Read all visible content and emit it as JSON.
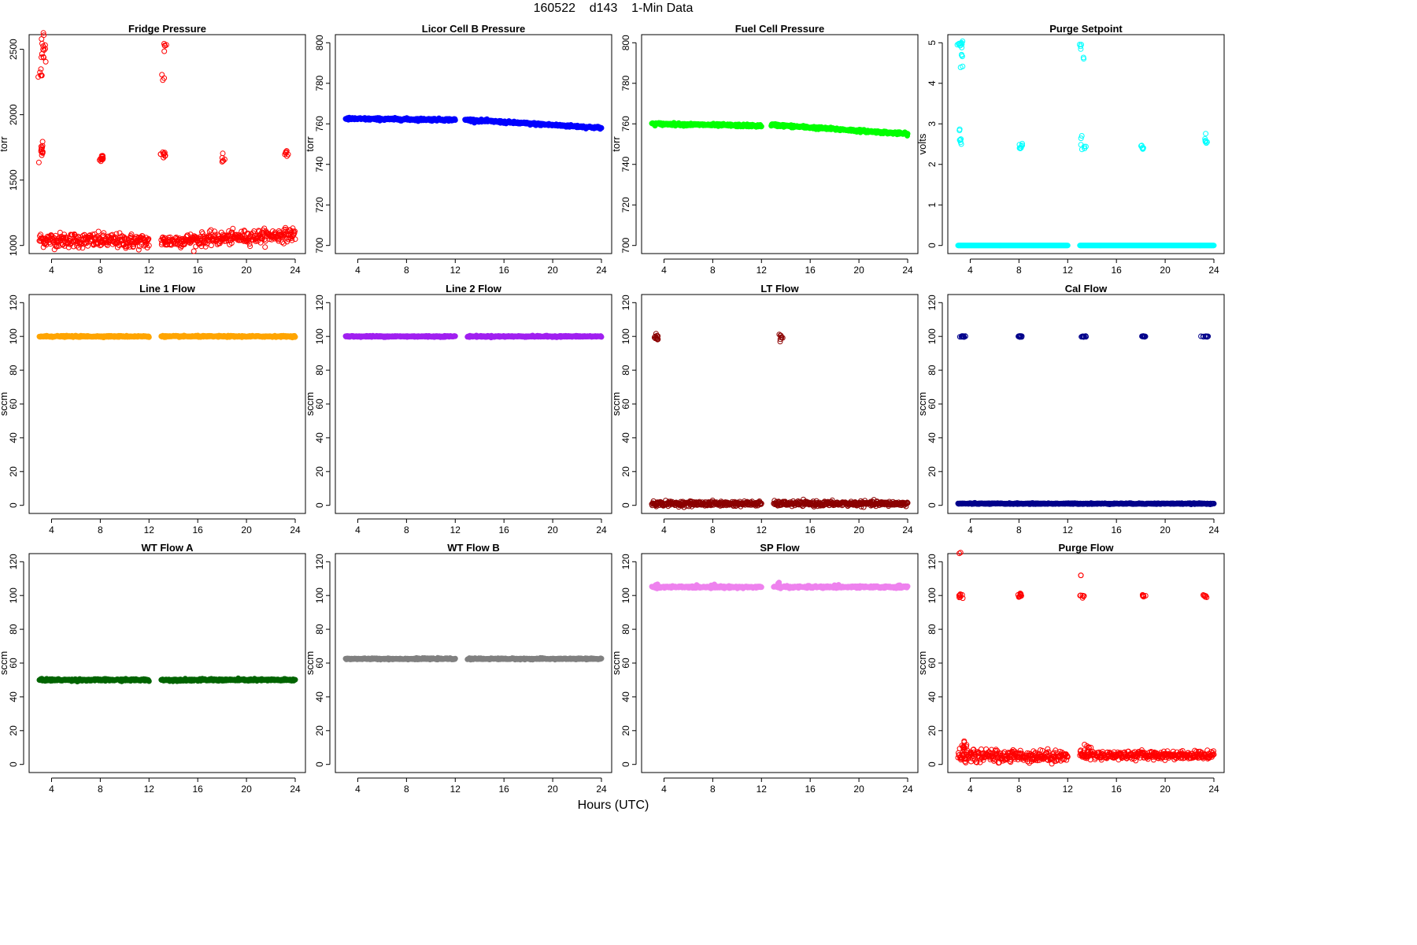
{
  "title": "160522    d143    1-Min Data",
  "x_axis_title": "Hours (UTC)",
  "chart_data": [
    {
      "type": "scatter",
      "title": "Fridge Pressure",
      "ylabel": "torr",
      "xlim": [
        3,
        24
      ],
      "ylim": [
        1000,
        2550
      ],
      "xticks": [
        4,
        8,
        12,
        16,
        20,
        24
      ],
      "yticks": [
        1000,
        1500,
        2000,
        2500
      ],
      "color": "#ff0000",
      "marker": "circle-open",
      "series": [
        {
          "segments": [
            {
              "x": [
                3,
                12
              ],
              "y": [
                1045,
                1030
              ],
              "noise": 28
            },
            {
              "x": [
                13,
                24
              ],
              "y": [
                1030,
                1085
              ],
              "noise": 25
            }
          ],
          "clusters": [
            {
              "x": 3.1,
              "y": 2300,
              "n": 6,
              "sx": 0.12,
              "sy": 40
            },
            {
              "x": 3.3,
              "y": 2520,
              "n": 14,
              "sx": 0.1,
              "sy": 45
            },
            {
              "x": 3.2,
              "y": 1690,
              "n": 10,
              "sx": 0.12,
              "sy": 30
            },
            {
              "x": 3.3,
              "y": 1780,
              "n": 3,
              "sx": 0.1,
              "sy": 20
            },
            {
              "x": 8.1,
              "y": 1665,
              "n": 12,
              "sx": 0.1,
              "sy": 20
            },
            {
              "x": 13.2,
              "y": 2280,
              "n": 3,
              "sx": 0.1,
              "sy": 30
            },
            {
              "x": 13.3,
              "y": 2530,
              "n": 5,
              "sx": 0.1,
              "sy": 40
            },
            {
              "x": 13.2,
              "y": 1700,
              "n": 10,
              "sx": 0.12,
              "sy": 25
            },
            {
              "x": 18.1,
              "y": 1655,
              "n": 6,
              "sx": 0.1,
              "sy": 15
            },
            {
              "x": 23.3,
              "y": 1705,
              "n": 7,
              "sx": 0.12,
              "sy": 15
            }
          ]
        }
      ]
    },
    {
      "type": "scatter",
      "title": "Licor Cell B Pressure",
      "ylabel": "torr",
      "xlim": [
        3,
        24
      ],
      "ylim": [
        700,
        800
      ],
      "xticks": [
        4,
        8,
        12,
        16,
        20,
        24
      ],
      "yticks": [
        700,
        720,
        740,
        760,
        780,
        800
      ],
      "color": "#0000ff",
      "marker": "circle-filled",
      "series": [
        {
          "segments": [
            {
              "x": [
                3,
                12
              ],
              "y": [
                762.5,
                762
              ],
              "noise": 0.3
            },
            {
              "x": [
                12.8,
                24
              ],
              "y": [
                762,
                758
              ],
              "noise": 0.3
            }
          ],
          "clusters": []
        }
      ]
    },
    {
      "type": "scatter",
      "title": "Fuel Cell Pressure",
      "ylabel": "torr",
      "xlim": [
        3,
        24
      ],
      "ylim": [
        700,
        800
      ],
      "xticks": [
        4,
        8,
        12,
        16,
        20,
        24
      ],
      "yticks": [
        700,
        720,
        740,
        760,
        780,
        800
      ],
      "color": "#00ff00",
      "marker": "circle-filled",
      "series": [
        {
          "segments": [
            {
              "x": [
                3,
                12
              ],
              "y": [
                760,
                759
              ],
              "noise": 0.3
            },
            {
              "x": [
                12.8,
                24
              ],
              "y": [
                759.5,
                755
              ],
              "noise": 0.3
            }
          ],
          "clusters": []
        }
      ]
    },
    {
      "type": "scatter",
      "title": "Purge Setpoint",
      "ylabel": "volts",
      "xlim": [
        3,
        24
      ],
      "ylim": [
        0,
        5
      ],
      "xticks": [
        4,
        8,
        12,
        16,
        20,
        24
      ],
      "yticks": [
        0,
        1,
        2,
        3,
        4,
        5
      ],
      "color": "#00ffff",
      "marker": "circle-open",
      "series": [
        {
          "segments": [
            {
              "x": [
                3,
                12
              ],
              "y": [
                0,
                0
              ],
              "noise": 0
            },
            {
              "x": [
                13,
                24
              ],
              "y": [
                0,
                0
              ],
              "noise": 0
            }
          ],
          "clusters": [
            {
              "x": 3.2,
              "y": 4.95,
              "n": 10,
              "sx": 0.1,
              "sy": 0.05
            },
            {
              "x": 3.3,
              "y": 4.6,
              "n": 6,
              "sx": 0.08,
              "sy": 0.15
            },
            {
              "x": 3.2,
              "y": 2.5,
              "n": 6,
              "sx": 0.08,
              "sy": 0.12
            },
            {
              "x": 3.1,
              "y": 2.85,
              "n": 2,
              "sx": 0.05,
              "sy": 0.1
            },
            {
              "x": 8.1,
              "y": 2.42,
              "n": 8,
              "sx": 0.1,
              "sy": 0.05
            },
            {
              "x": 13.1,
              "y": 4.95,
              "n": 4,
              "sx": 0.08,
              "sy": 0.05
            },
            {
              "x": 13.3,
              "y": 4.6,
              "n": 2,
              "sx": 0.05,
              "sy": 0.05
            },
            {
              "x": 13.2,
              "y": 2.5,
              "n": 7,
              "sx": 0.1,
              "sy": 0.15
            },
            {
              "x": 18.1,
              "y": 2.42,
              "n": 6,
              "sx": 0.1,
              "sy": 0.05
            },
            {
              "x": 23.3,
              "y": 2.5,
              "n": 7,
              "sx": 0.1,
              "sy": 0.1
            }
          ]
        }
      ]
    },
    {
      "type": "scatter",
      "title": "Line 1 Flow",
      "ylabel": "sccm",
      "xlim": [
        3,
        24
      ],
      "ylim": [
        0,
        120
      ],
      "xticks": [
        4,
        8,
        12,
        16,
        20,
        24
      ],
      "yticks": [
        0,
        20,
        40,
        60,
        80,
        100,
        120
      ],
      "color": "#ffa500",
      "marker": "circle-filled",
      "series": [
        {
          "segments": [
            {
              "x": [
                3,
                12
              ],
              "y": [
                100,
                100
              ],
              "noise": 0.2
            },
            {
              "x": [
                13,
                24
              ],
              "y": [
                100,
                100
              ],
              "noise": 0.2
            }
          ],
          "clusters": []
        }
      ]
    },
    {
      "type": "scatter",
      "title": "Line 2 Flow",
      "ylabel": "sccm",
      "xlim": [
        3,
        24
      ],
      "ylim": [
        0,
        120
      ],
      "xticks": [
        4,
        8,
        12,
        16,
        20,
        24
      ],
      "yticks": [
        0,
        20,
        40,
        60,
        80,
        100,
        120
      ],
      "color": "#a020f0",
      "marker": "circle-filled",
      "series": [
        {
          "segments": [
            {
              "x": [
                3,
                12
              ],
              "y": [
                100,
                100
              ],
              "noise": 0.2
            },
            {
              "x": [
                13,
                24
              ],
              "y": [
                100,
                100
              ],
              "noise": 0.2
            }
          ],
          "clusters": []
        }
      ]
    },
    {
      "type": "scatter",
      "title": "LT Flow",
      "ylabel": "sccm",
      "xlim": [
        3,
        24
      ],
      "ylim": [
        0,
        120
      ],
      "xticks": [
        4,
        8,
        12,
        16,
        20,
        24
      ],
      "yticks": [
        0,
        20,
        40,
        60,
        80,
        100,
        120
      ],
      "color": "#8b0000",
      "marker": "circle-open",
      "series": [
        {
          "segments": [
            {
              "x": [
                3,
                12
              ],
              "y": [
                1,
                1
              ],
              "noise": 0.7
            },
            {
              "x": [
                13,
                24
              ],
              "y": [
                1,
                1
              ],
              "noise": 0.7
            }
          ],
          "clusters": [
            {
              "x": 3.4,
              "y": 99.5,
              "n": 12,
              "sx": 0.08,
              "sy": 1
            },
            {
              "x": 13.6,
              "y": 99.5,
              "n": 8,
              "sx": 0.08,
              "sy": 1.2
            }
          ]
        }
      ]
    },
    {
      "type": "scatter",
      "title": "Cal Flow",
      "ylabel": "sccm",
      "xlim": [
        3,
        24
      ],
      "ylim": [
        0,
        120
      ],
      "xticks": [
        4,
        8,
        12,
        16,
        20,
        24
      ],
      "yticks": [
        0,
        20,
        40,
        60,
        80,
        100,
        120
      ],
      "color": "#00008b",
      "marker": "circle-open",
      "series": [
        {
          "segments": [
            {
              "x": [
                3,
                24
              ],
              "y": [
                1,
                1
              ],
              "noise": 0.15
            }
          ],
          "clusters": [
            {
              "x": 3.3,
              "y": 100,
              "n": 12,
              "sx": 0.12,
              "sy": 0.2
            },
            {
              "x": 8.1,
              "y": 100,
              "n": 12,
              "sx": 0.12,
              "sy": 0.2
            },
            {
              "x": 13.3,
              "y": 100,
              "n": 12,
              "sx": 0.12,
              "sy": 0.2
            },
            {
              "x": 18.2,
              "y": 100,
              "n": 12,
              "sx": 0.12,
              "sy": 0.2
            },
            {
              "x": 23.3,
              "y": 100,
              "n": 12,
              "sx": 0.15,
              "sy": 0.2
            }
          ]
        }
      ]
    },
    {
      "type": "scatter",
      "title": "WT Flow A",
      "ylabel": "sccm",
      "xlim": [
        3,
        24
      ],
      "ylim": [
        0,
        120
      ],
      "xticks": [
        4,
        8,
        12,
        16,
        20,
        24
      ],
      "yticks": [
        0,
        20,
        40,
        60,
        80,
        100,
        120
      ],
      "color": "#006400",
      "marker": "circle-filled",
      "series": [
        {
          "segments": [
            {
              "x": [
                3,
                12
              ],
              "y": [
                50,
                50
              ],
              "noise": 0.3
            },
            {
              "x": [
                13,
                24
              ],
              "y": [
                50,
                50
              ],
              "noise": 0.3
            }
          ],
          "clusters": []
        }
      ]
    },
    {
      "type": "scatter",
      "title": "WT Flow B",
      "ylabel": "sccm",
      "xlim": [
        3,
        24
      ],
      "ylim": [
        0,
        120
      ],
      "xticks": [
        4,
        8,
        12,
        16,
        20,
        24
      ],
      "yticks": [
        0,
        20,
        40,
        60,
        80,
        100,
        120
      ],
      "color": "#808080",
      "marker": "circle-filled",
      "series": [
        {
          "segments": [
            {
              "x": [
                3,
                12
              ],
              "y": [
                62.5,
                62.5
              ],
              "noise": 0.2
            },
            {
              "x": [
                13,
                24
              ],
              "y": [
                62.5,
                62.5
              ],
              "noise": 0.2
            }
          ],
          "clusters": []
        }
      ]
    },
    {
      "type": "scatter",
      "title": "SP Flow",
      "ylabel": "sccm",
      "xlim": [
        3,
        24
      ],
      "ylim": [
        0,
        120
      ],
      "xticks": [
        4,
        8,
        12,
        16,
        20,
        24
      ],
      "yticks": [
        0,
        20,
        40,
        60,
        80,
        100,
        120
      ],
      "color": "#ee82ee",
      "marker": "circle-filled",
      "series": [
        {
          "segments": [
            {
              "x": [
                3,
                12
              ],
              "y": [
                105,
                105
              ],
              "noise": 0.3
            },
            {
              "x": [
                13,
                24
              ],
              "y": [
                105,
                105
              ],
              "noise": 0.3
            }
          ],
          "clusters": [
            {
              "x": 3.4,
              "y": 106,
              "n": 4,
              "sx": 0.1,
              "sy": 0.5
            },
            {
              "x": 8.1,
              "y": 106,
              "n": 4,
              "sx": 0.1,
              "sy": 0.4
            },
            {
              "x": 13.5,
              "y": 106.5,
              "n": 5,
              "sx": 0.12,
              "sy": 0.5
            },
            {
              "x": 18.2,
              "y": 106,
              "n": 4,
              "sx": 0.1,
              "sy": 0.4
            },
            {
              "x": 23.3,
              "y": 106,
              "n": 4,
              "sx": 0.1,
              "sy": 0.4
            }
          ]
        }
      ]
    },
    {
      "type": "scatter",
      "title": "Purge Flow",
      "ylabel": "sccm",
      "xlim": [
        3,
        24
      ],
      "ylim": [
        0,
        120
      ],
      "xticks": [
        4,
        8,
        12,
        16,
        20,
        24
      ],
      "yticks": [
        0,
        20,
        40,
        60,
        80,
        100,
        120
      ],
      "color": "#ff0000",
      "marker": "circle-open",
      "series": [
        {
          "segments": [
            {
              "x": [
                3,
                12
              ],
              "y": [
                5,
                5
              ],
              "noise": 1.8
            },
            {
              "x": [
                13,
                24
              ],
              "y": [
                5.5,
                5.5
              ],
              "noise": 1.2
            }
          ],
          "clusters": [
            {
              "x": 3.2,
              "y": 125,
              "n": 2,
              "sx": 0.06,
              "sy": 0.3
            },
            {
              "x": 3.2,
              "y": 100,
              "n": 8,
              "sx": 0.1,
              "sy": 1.2
            },
            {
              "x": 8.1,
              "y": 100,
              "n": 10,
              "sx": 0.1,
              "sy": 1
            },
            {
              "x": 13.1,
              "y": 112,
              "n": 2,
              "sx": 0.05,
              "sy": 0.3
            },
            {
              "x": 13.2,
              "y": 100,
              "n": 6,
              "sx": 0.1,
              "sy": 0.5
            },
            {
              "x": 18.2,
              "y": 100,
              "n": 6,
              "sx": 0.1,
              "sy": 0.5
            },
            {
              "x": 23.3,
              "y": 100,
              "n": 6,
              "sx": 0.1,
              "sy": 0.5
            },
            {
              "x": 3.5,
              "y": 10,
              "n": 10,
              "sx": 0.15,
              "sy": 2
            },
            {
              "x": 13.6,
              "y": 10,
              "n": 8,
              "sx": 0.15,
              "sy": 1.5
            }
          ]
        }
      ]
    }
  ]
}
